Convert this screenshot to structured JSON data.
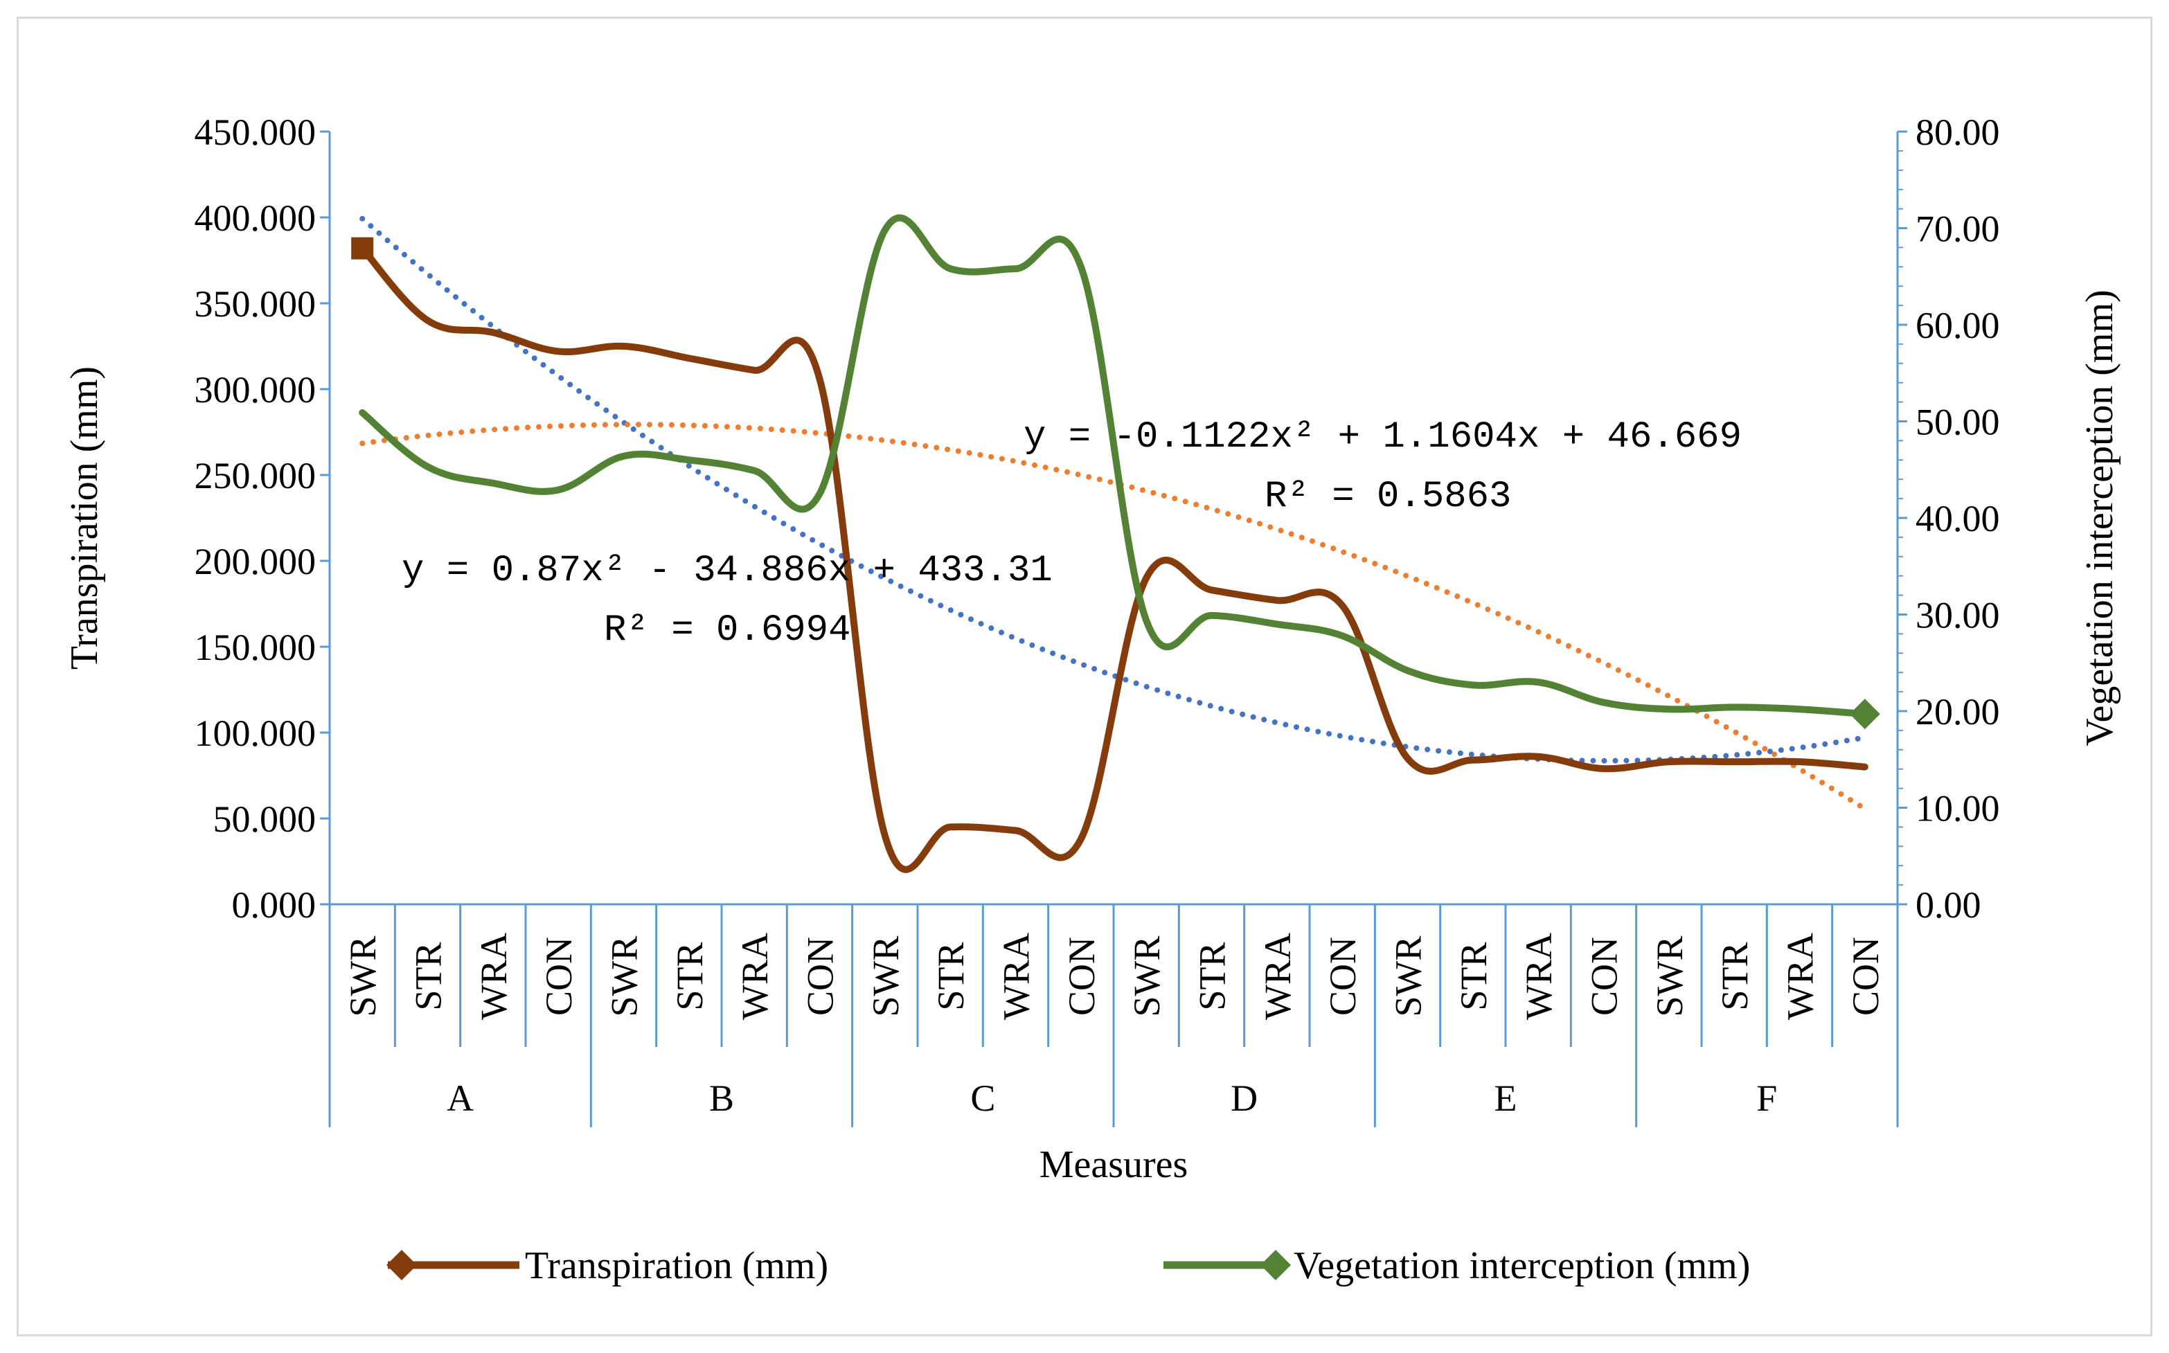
{
  "chart_data": {
    "type": "line",
    "xlabel": "Measures",
    "ylabel_left": "Transpiration (mm)",
    "ylabel_right": "Vegetation interception (mm)",
    "ylim_left": [
      0,
      450
    ],
    "ylim_right": [
      0,
      80
    ],
    "yticks_left": [
      "0.000",
      "50.000",
      "100.000",
      "150.000",
      "200.000",
      "250.000",
      "300.000",
      "350.000",
      "400.000",
      "450.000"
    ],
    "yticks_right": [
      "0.00",
      "10.00",
      "20.00",
      "30.00",
      "40.00",
      "50.00",
      "60.00",
      "70.00",
      "80.00"
    ],
    "groups": [
      "A",
      "B",
      "C",
      "D",
      "E",
      "F"
    ],
    "subcategories": [
      "SWR",
      "STR",
      "WRA",
      "CON"
    ],
    "categories": [
      "SWR",
      "STR",
      "WRA",
      "CON",
      "SWR",
      "STR",
      "WRA",
      "CON",
      "SWR",
      "STR",
      "WRA",
      "CON",
      "SWR",
      "STR",
      "WRA",
      "CON",
      "SWR",
      "STR",
      "WRA",
      "CON",
      "SWR",
      "STR",
      "WRA",
      "CON"
    ],
    "series": [
      {
        "name": "Transpiration (mm)",
        "axis": "left",
        "color": "#843c0c",
        "values": [
          382,
          340,
          333,
          322,
          325,
          318,
          311,
          306,
          40,
          45,
          43,
          38,
          190,
          183,
          177,
          174,
          85,
          84,
          86,
          79,
          83,
          83,
          83,
          80
        ]
      },
      {
        "name": "Vegetation interception (mm)",
        "axis": "right",
        "color": "#548235",
        "values": [
          50.9,
          45.3,
          43.6,
          42.9,
          46.4,
          46.0,
          44.9,
          42.5,
          69.8,
          65.8,
          65.8,
          66.0,
          29.4,
          29.9,
          29.0,
          27.8,
          24.2,
          22.7,
          23.0,
          20.9,
          20.2,
          20.4,
          20.2,
          19.7
        ]
      }
    ],
    "trendlines": [
      {
        "series": "Transpiration (mm)",
        "axis": "left",
        "color": "#4472c4",
        "coefficients": [
          0.87,
          -34.886,
          433.31
        ],
        "equation": "y = 0.87x² - 34.886x + 433.31",
        "r2_label": "R² = 0.6994"
      },
      {
        "series": "Vegetation interception (mm)",
        "axis": "right",
        "color": "#ed7d31",
        "coefficients": [
          -0.1122,
          1.1604,
          46.669
        ],
        "equation": "y = -0.1122x² + 1.1604x + 46.669",
        "r2_label": "R² = 0.5863"
      }
    ],
    "legend_position": "bottom",
    "grid": false
  }
}
